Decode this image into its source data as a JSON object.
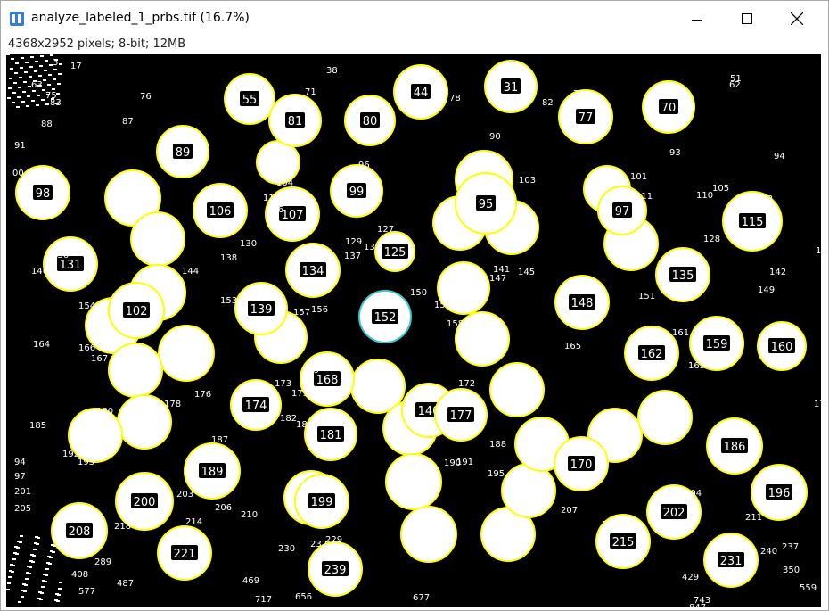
{
  "window": {
    "title": "analyze_labeled_1_prbs.tif (16.7%)",
    "info": "4368x2952 pixels; 8-bit; 12MB",
    "icon": "imagej-icon",
    "controls": [
      "minimize-icon",
      "maximize-icon",
      "close-icon"
    ]
  },
  "colors": {
    "particle_fill": "#ffffff",
    "particle_outline": "#ffff00",
    "selected_outline": "#38c8d0",
    "label_bg": "#000000",
    "label_text": "#ffffff",
    "background": "#000000"
  },
  "particles": [
    {
      "label": "55"
    },
    {
      "label": "81"
    },
    {
      "label": "80"
    },
    {
      "label": "44"
    },
    {
      "label": "31"
    },
    {
      "label": "77"
    },
    {
      "label": "70"
    },
    {
      "label": "89"
    },
    {
      "label": "98"
    },
    {
      "label": "106"
    },
    {
      "label": "107"
    },
    {
      "label": "99"
    },
    {
      "label": "95"
    },
    {
      "label": "97"
    },
    {
      "label": "115"
    },
    {
      "label": "131"
    },
    {
      "label": "134"
    },
    {
      "label": "125"
    },
    {
      "label": "135"
    },
    {
      "label": "102"
    },
    {
      "label": "139"
    },
    {
      "label": "152"
    },
    {
      "label": "148"
    },
    {
      "label": "162"
    },
    {
      "label": "159"
    },
    {
      "label": "160"
    },
    {
      "label": "168"
    },
    {
      "label": "174"
    },
    {
      "label": "140"
    },
    {
      "label": "177"
    },
    {
      "label": "181"
    },
    {
      "label": "186"
    },
    {
      "label": "189"
    },
    {
      "label": "170"
    },
    {
      "label": "196"
    },
    {
      "label": "200"
    },
    {
      "label": "199"
    },
    {
      "label": "202"
    },
    {
      "label": "208"
    },
    {
      "label": "215"
    },
    {
      "label": "221"
    },
    {
      "label": "239"
    },
    {
      "label": "231"
    }
  ],
  "loose_labels": [
    "3",
    "17",
    "38",
    "71",
    "76",
    "87",
    "88",
    "91",
    "83",
    "75",
    "63",
    "78",
    "82",
    "73",
    "90",
    "93",
    "94",
    "51",
    "62",
    "92",
    "96",
    "104",
    "108",
    "113",
    "116",
    "103",
    "101",
    "111",
    "110",
    "105",
    "113",
    "00",
    "130",
    "138",
    "129",
    "132",
    "137",
    "127",
    "128",
    "13",
    "136",
    "146",
    "144",
    "142",
    "141",
    "147",
    "145",
    "153",
    "157",
    "156",
    "150",
    "155",
    "151",
    "149",
    "154",
    "158",
    "166",
    "164",
    "167",
    "165",
    "161",
    "163",
    "169",
    "173",
    "175",
    "172",
    "176",
    "178",
    "180",
    "183",
    "185",
    "182",
    "184",
    "187",
    "188",
    "190",
    "192",
    "193",
    "191",
    "195",
    "179",
    "94",
    "97",
    "203",
    "206",
    "210",
    "214",
    "218",
    "198",
    "207",
    "204",
    "211",
    "217",
    "205",
    "201",
    "230",
    "232",
    "229",
    "237",
    "240",
    "289",
    "469",
    "408",
    "487",
    "350",
    "429",
    "559",
    "717",
    "656",
    "677",
    "743",
    "847",
    "577"
  ]
}
